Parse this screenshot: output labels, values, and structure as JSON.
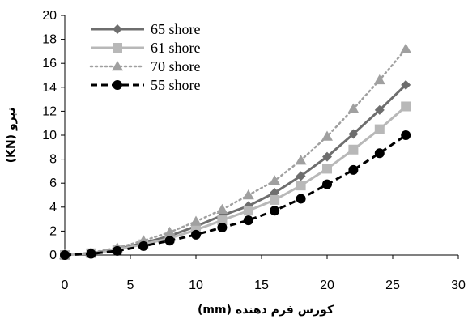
{
  "chart_data": {
    "type": "line",
    "title": "",
    "xlabel": "کورس فرم دهنده (mm)",
    "ylabel": "نیرو (KN)",
    "xlim": [
      0,
      30
    ],
    "ylim": [
      0,
      20
    ],
    "x_ticks": [
      "0",
      "5",
      "10",
      "15",
      "20",
      "25",
      "30"
    ],
    "y_ticks": [
      "0",
      "2",
      "4",
      "6",
      "8",
      "10",
      "12",
      "14",
      "16",
      "18",
      "20"
    ],
    "grid": false,
    "legend_position": "top-left",
    "x": [
      0,
      2,
      4,
      6,
      8,
      10,
      12,
      14,
      16,
      18,
      20,
      22,
      24,
      26
    ],
    "series": [
      {
        "name": "65 shore",
        "color": "#6e6e6e",
        "marker": "diamond",
        "line_style": "solid",
        "values": [
          0,
          0.15,
          0.5,
          1.0,
          1.6,
          2.4,
          3.3,
          4.1,
          5.2,
          6.6,
          8.2,
          10.1,
          12.1,
          14.2
        ]
      },
      {
        "name": "61 shore",
        "color": "#b8b8b8",
        "marker": "square",
        "line_style": "solid",
        "values": [
          0,
          0.15,
          0.45,
          0.9,
          1.4,
          2.1,
          2.9,
          3.7,
          4.6,
          5.8,
          7.2,
          8.8,
          10.5,
          12.4
        ]
      },
      {
        "name": "70 shore",
        "color": "#a0a0a0",
        "marker": "triangle",
        "line_style": "dotted",
        "values": [
          0,
          0.2,
          0.6,
          1.2,
          1.9,
          2.8,
          3.8,
          5.0,
          6.2,
          7.9,
          9.9,
          12.2,
          14.6,
          17.2
        ]
      },
      {
        "name": "55 shore",
        "color": "#000000",
        "marker": "circle",
        "line_style": "dashed",
        "values": [
          0,
          0.1,
          0.35,
          0.75,
          1.2,
          1.7,
          2.3,
          2.9,
          3.7,
          4.7,
          5.9,
          7.1,
          8.5,
          10.0
        ]
      }
    ]
  }
}
